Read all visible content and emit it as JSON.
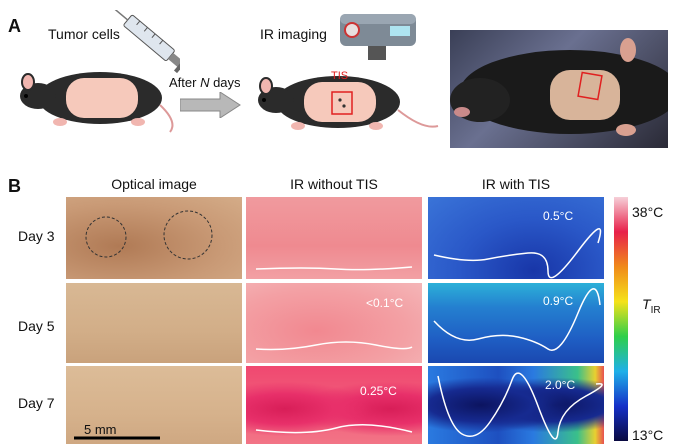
{
  "panel_a": {
    "letter": "A",
    "tumor_cells_label": "Tumor cells",
    "after_label_prefix": "After ",
    "after_label_var": "N",
    "after_label_suffix": " days",
    "ir_imaging_label": "IR imaging",
    "tis_label": "TIS"
  },
  "panel_b": {
    "letter": "B",
    "column_headers": [
      "Optical image",
      "IR without TIS",
      "IR with TIS"
    ],
    "rows": [
      {
        "day": "Day 3",
        "ir_without_value": "",
        "ir_with_value": "0.5°C"
      },
      {
        "day": "Day 5",
        "ir_without_value": "<0.1°C",
        "ir_with_value": "0.9°C"
      },
      {
        "day": "Day 7",
        "ir_without_value": "0.25°C",
        "ir_with_value": "2.0°C"
      }
    ],
    "scale_bar_label": "5 mm",
    "colorbar": {
      "max_label": "38°C",
      "min_label": "13°C",
      "var": "T",
      "var_sub": "IR",
      "colors": [
        "#0a0a40",
        "#1530c8",
        "#1fb0e8",
        "#2ecf4a",
        "#f5e21a",
        "#f08a1a",
        "#e8204a",
        "#f6d0d8"
      ]
    }
  },
  "colors": {
    "tis_red": "#e02020",
    "skin": "#f6c9bb",
    "mouse": "#2b2b2b"
  }
}
